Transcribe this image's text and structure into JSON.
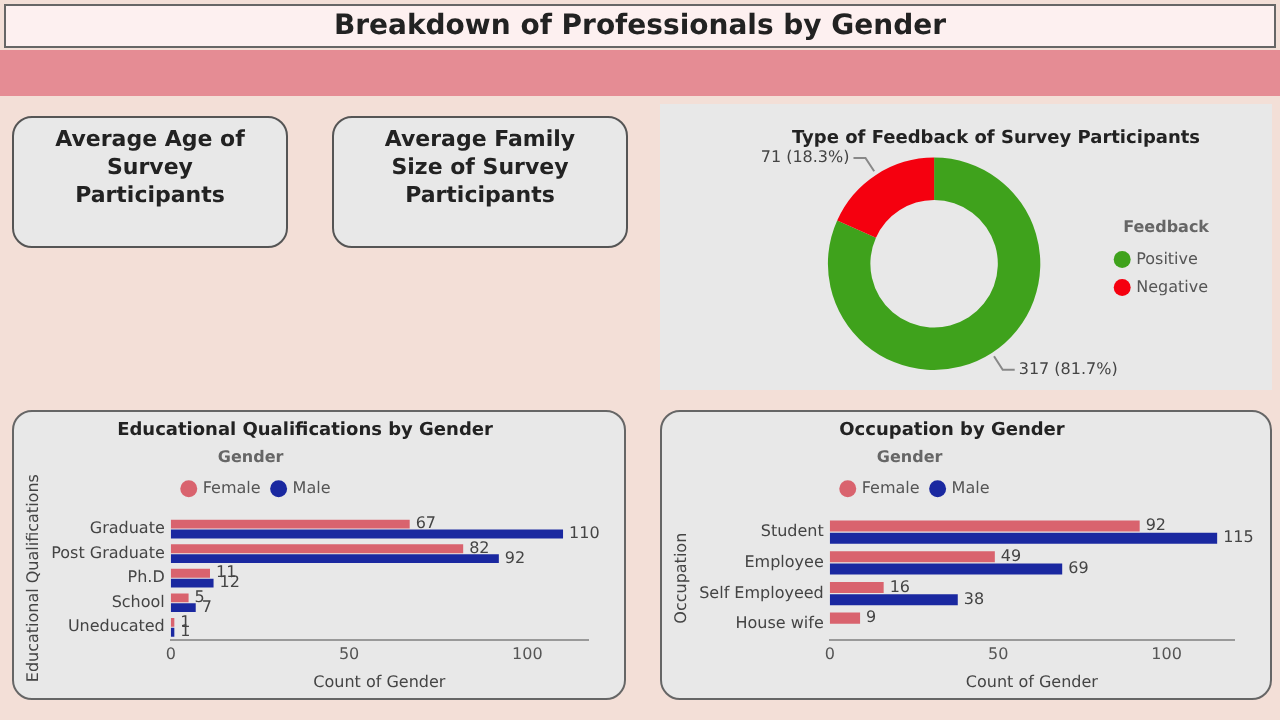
{
  "chart_data": [
    {
      "type": "other",
      "title": "Breakdown of Professionals by Gender"
    },
    {
      "type": "other",
      "title": "Average Age of Survey Participants"
    },
    {
      "type": "other",
      "title": "Average Family Size of Survey Participants"
    },
    {
      "type": "donut",
      "title": "Type of Feedback of Survey Participants",
      "categories": [
        "Positive",
        "Negative"
      ],
      "values": [
        317,
        71
      ],
      "colors": [
        "#3fa21c",
        "#f5000f"
      ],
      "value_labels": [
        "317 (81.7%)",
        "71 (18.3%)"
      ],
      "legend_title": "Feedback",
      "legend": "right"
    },
    {
      "type": "bar",
      "orientation": "horizontal",
      "title": "Educational Qualifications by Gender",
      "categories": [
        "Graduate",
        "Post Graduate",
        "Ph.D",
        "School",
        "Uneducated"
      ],
      "series": [
        {
          "name": "Female",
          "color": "#d9636e",
          "values": [
            67,
            82,
            11,
            5,
            1
          ]
        },
        {
          "name": "Male",
          "color": "#1a28a0",
          "values": [
            110,
            92,
            12,
            7,
            1
          ]
        }
      ],
      "xlim": [
        0,
        117
      ],
      "xticks": [
        0,
        50,
        100
      ],
      "xlabel": "Count of Gender",
      "ylabel": "Educational Qualifications",
      "legend_title": "Gender",
      "legend": "top left",
      "data_labels": true
    },
    {
      "type": "bar",
      "orientation": "horizontal",
      "title": "Occupation by Gender",
      "categories": [
        "Student",
        "Employee",
        "Self Employeed",
        "House wife"
      ],
      "series": [
        {
          "name": "Female",
          "color": "#d9636e",
          "values": [
            92,
            49,
            16,
            9
          ]
        },
        {
          "name": "Male",
          "color": "#1a28a0",
          "values": [
            115,
            69,
            38,
            null
          ]
        }
      ],
      "xlim": [
        0,
        120
      ],
      "xticks": [
        0,
        50,
        100
      ],
      "xlabel": "Count of Gender",
      "ylabel": "Occupation",
      "legend_title": "Gender",
      "legend": "top left",
      "data_labels": true
    }
  ]
}
